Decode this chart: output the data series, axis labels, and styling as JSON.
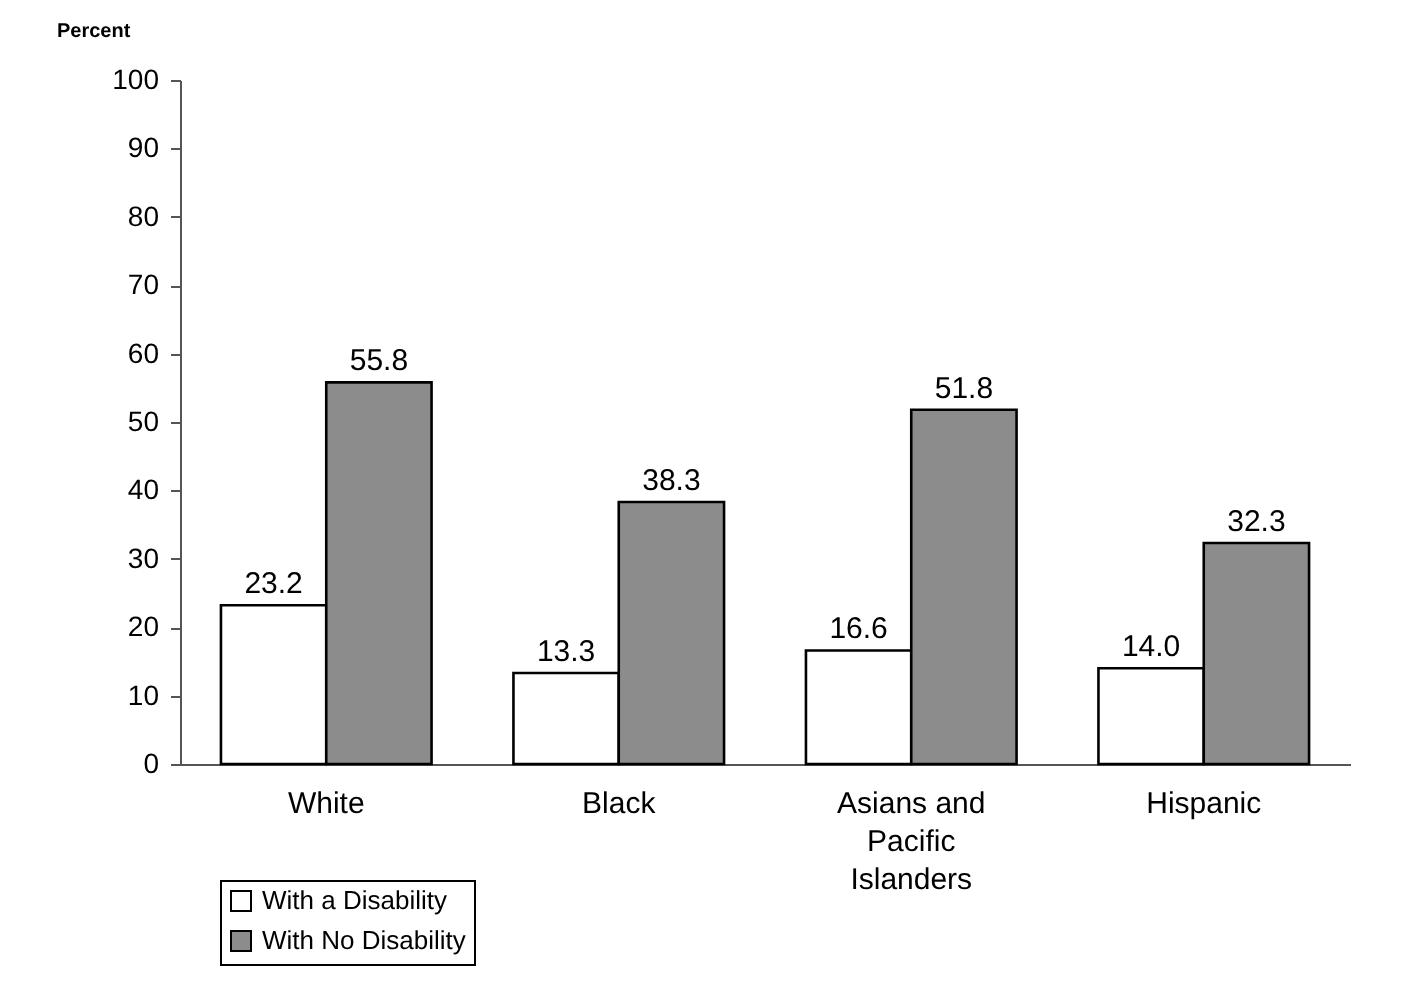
{
  "chart_data": {
    "type": "bar",
    "ylabel": "Percent",
    "categories": [
      "White",
      "Black",
      "Asians and Pacific Islanders",
      "Hispanic"
    ],
    "series": [
      {
        "name": "With a Disability",
        "color": "#ffffff",
        "values": [
          23.2,
          13.3,
          16.6,
          14.0
        ],
        "value_labels": [
          "23.2",
          "13.3",
          "16.6",
          "14.0"
        ]
      },
      {
        "name": "With No Disability",
        "color": "#8c8c8c",
        "values": [
          55.8,
          38.3,
          51.8,
          32.3
        ],
        "value_labels": [
          "55.8",
          "38.3",
          "51.8",
          "32.3"
        ]
      }
    ],
    "ylim": [
      0,
      100
    ],
    "yticks": [
      0,
      10,
      20,
      30,
      40,
      50,
      60,
      70,
      80,
      90,
      100
    ],
    "legend": "bottom left",
    "grid": false
  }
}
